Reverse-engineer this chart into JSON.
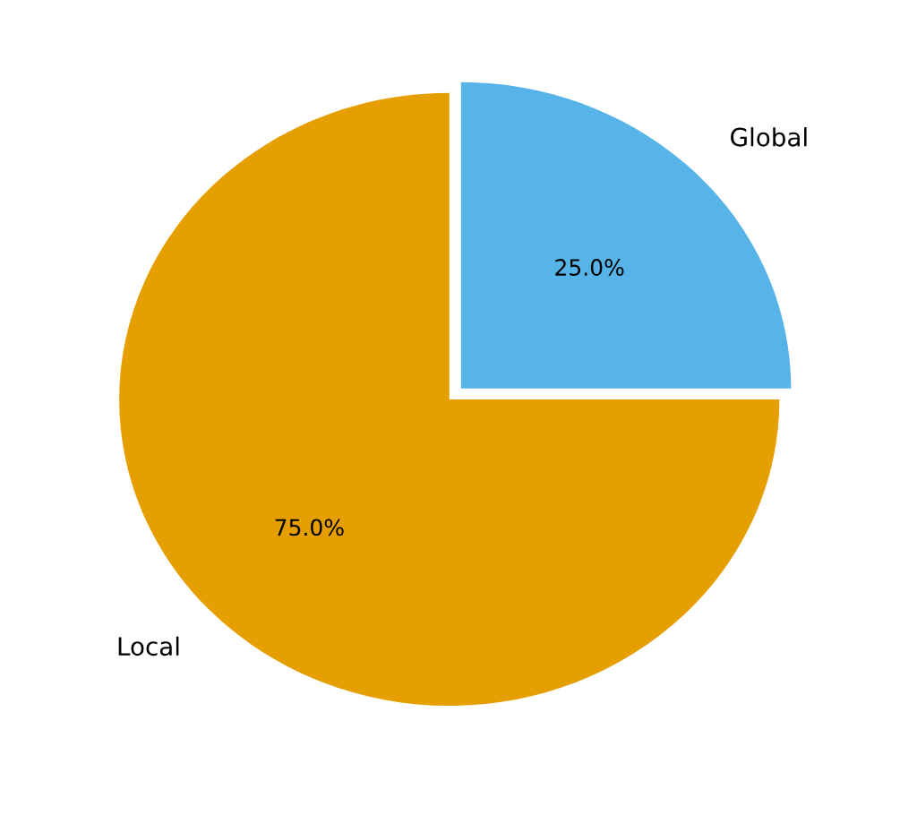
{
  "chart_data": {
    "type": "pie",
    "categories": [
      "Global",
      "Local"
    ],
    "values": [
      25,
      75
    ],
    "colors": [
      "#56b4e9",
      "#e69f00"
    ],
    "value_labels": [
      "25.0%",
      "75.0%"
    ],
    "legend": false
  }
}
